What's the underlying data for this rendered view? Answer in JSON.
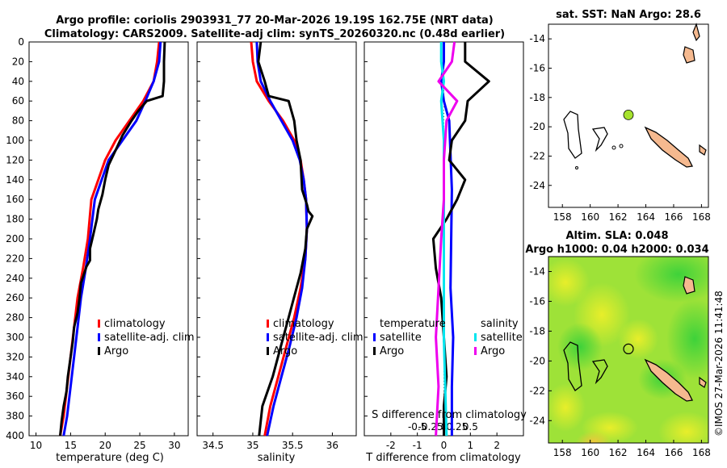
{
  "header": {
    "title_line1": "Argo profile: coriolis 2903931_77 20-Mar-2026 19.19S 162.75E (NRT data)",
    "title_line2": "Climatology: CARS2009. Satellite-adj clim: synTS_20260320.nc (0.48d earlier)"
  },
  "sst_title": "sat. SST: NaN Argo: 28.6",
  "sla_title_line1": "Altim. SLA: 0.048",
  "sla_title_line2": "Argo h1000: 0.04 h2000: 0.034",
  "watermark": "©IMOS 27-Mar-2026 11:41:48",
  "colors": {
    "climatology": "#ff0000",
    "satellite": "#0000ff",
    "argo": "#000000",
    "t_sat": "#00e5ee",
    "s_diff": "#ee00ee",
    "land": "#f5b98f",
    "float": "#a6e22e"
  },
  "chart_data": [
    {
      "type": "line",
      "id": "temperature",
      "xlabel": "temperature (deg C)",
      "xlim": [
        9,
        32
      ],
      "ylim": [
        400,
        0
      ],
      "xticks": [
        10,
        15,
        20,
        25,
        30
      ],
      "yticks": [
        0,
        20,
        40,
        60,
        80,
        100,
        120,
        140,
        160,
        180,
        200,
        220,
        240,
        260,
        280,
        300,
        320,
        340,
        360,
        380,
        400
      ],
      "legend": [
        "climatology",
        "satellite-adj. clim",
        "Argo"
      ],
      "series": [
        {
          "name": "climatology",
          "color": "#ff0000",
          "x": [
            27.8,
            27.5,
            27.0,
            25.5,
            23.5,
            21.5,
            20.0,
            19.0,
            18.0,
            17.5,
            16.8,
            16.0,
            15.5,
            15.0,
            14.5,
            14.0,
            13.5
          ],
          "y": [
            0,
            20,
            40,
            60,
            80,
            100,
            120,
            140,
            160,
            200,
            230,
            260,
            290,
            320,
            350,
            380,
            400
          ]
        },
        {
          "name": "satellite-adj. clim",
          "color": "#0000ff",
          "x": [
            28.0,
            27.8,
            27.0,
            25.8,
            24.5,
            22.5,
            20.5,
            19.5,
            18.5,
            17.8,
            17.2,
            16.5,
            16.0,
            15.5,
            15.0,
            14.5,
            14.0
          ],
          "y": [
            0,
            20,
            40,
            60,
            80,
            100,
            120,
            140,
            160,
            200,
            230,
            260,
            290,
            320,
            350,
            380,
            400
          ]
        },
        {
          "name": "Argo",
          "color": "#000000",
          "x": [
            28.6,
            28.5,
            28.5,
            28.3,
            26.0,
            24.8,
            23.8,
            22.5,
            21.5,
            20.5,
            20.0,
            19.6,
            19.0,
            18.8,
            18.3,
            17.8,
            17.8,
            17.3,
            16.5,
            16.3,
            16.0,
            15.5,
            15.3,
            15.0,
            14.6,
            14.4,
            14.0,
            13.7,
            13.5
          ],
          "y": [
            0,
            20,
            40,
            55,
            60,
            70,
            80,
            95,
            110,
            125,
            140,
            155,
            170,
            180,
            195,
            210,
            222,
            228,
            245,
            260,
            275,
            290,
            305,
            320,
            340,
            355,
            370,
            385,
            400
          ]
        }
      ]
    },
    {
      "type": "line",
      "id": "salinity",
      "xlabel": "salinity",
      "xlim": [
        34.3,
        36.3
      ],
      "ylim": [
        400,
        0
      ],
      "xticks": [
        34.5,
        35,
        35.5,
        36
      ],
      "legend": [
        "climatology",
        "satellite-adj. clim",
        "Argo"
      ],
      "series": [
        {
          "name": "climatology",
          "color": "#ff0000",
          "x": [
            34.98,
            35.0,
            35.05,
            35.2,
            35.38,
            35.52,
            35.6,
            35.64,
            35.67,
            35.68,
            35.66,
            35.6,
            35.52,
            35.42,
            35.32,
            35.22,
            35.15
          ],
          "y": [
            0,
            20,
            40,
            60,
            80,
            100,
            120,
            140,
            160,
            190,
            220,
            250,
            280,
            310,
            340,
            370,
            400
          ]
        },
        {
          "name": "satellite-adj. clim",
          "color": "#0000ff",
          "x": [
            35.05,
            35.06,
            35.1,
            35.22,
            35.36,
            35.5,
            35.59,
            35.64,
            35.67,
            35.68,
            35.66,
            35.62,
            35.55,
            35.46,
            35.36,
            35.26,
            35.18
          ],
          "y": [
            0,
            20,
            40,
            60,
            80,
            100,
            120,
            140,
            160,
            190,
            220,
            250,
            280,
            310,
            340,
            370,
            400
          ]
        },
        {
          "name": "Argo",
          "color": "#000000",
          "x": [
            35.1,
            35.07,
            35.15,
            35.2,
            35.45,
            35.52,
            35.55,
            35.6,
            35.62,
            35.68,
            35.7,
            35.75,
            35.68,
            35.66,
            35.6,
            35.55,
            35.45,
            35.35,
            35.25,
            35.12,
            35.08
          ],
          "y": [
            0,
            20,
            40,
            55,
            60,
            80,
            100,
            120,
            150,
            165,
            172,
            177,
            190,
            210,
            235,
            250,
            280,
            310,
            340,
            370,
            400
          ]
        }
      ]
    },
    {
      "type": "line",
      "id": "difference",
      "xlabel": "T difference from climatology",
      "top_label": "S difference from climatology",
      "xlim": [
        -3,
        3
      ],
      "ylim": [
        400,
        0
      ],
      "xticks": [
        -2,
        -1,
        0,
        1,
        2
      ],
      "s_ticks": [
        "-0.5",
        "-0.25",
        "0",
        "0.25",
        "0.5"
      ],
      "s_tick_values": [
        -1,
        -0.5,
        0,
        0.5,
        1
      ],
      "legend_temperature_header": "temperature",
      "legend_salinity_header": "salinity",
      "legend_temperature": [
        "satellite",
        "Argo"
      ],
      "legend_salinity": [
        "satellite",
        "Argo"
      ],
      "series": [
        {
          "name": "T satellite",
          "color": "#0000ff",
          "x": [
            0.0,
            0.0,
            -0.1,
            0.0,
            0.2,
            0.3,
            0.25,
            0.35,
            0.3,
            0.3
          ],
          "y": [
            0,
            20,
            40,
            60,
            80,
            150,
            250,
            300,
            350,
            400
          ]
        },
        {
          "name": "T Argo",
          "color": "#000000",
          "x": [
            0.8,
            0.8,
            1.7,
            0.9,
            0.8,
            0.3,
            0.2,
            0.8,
            0.5,
            0.1,
            -0.4,
            -0.3,
            -0.1,
            0.0,
            0.1,
            0.0,
            0.0
          ],
          "y": [
            0,
            20,
            40,
            60,
            80,
            100,
            120,
            140,
            160,
            180,
            200,
            230,
            260,
            300,
            340,
            370,
            400
          ]
        },
        {
          "name": "S satellite",
          "color": "#00e5ee",
          "x": [
            -0.1,
            -0.1,
            0.0,
            -0.1,
            0.0,
            0.0,
            0.0,
            0.0,
            0.05,
            0.1
          ],
          "y": [
            0,
            20,
            40,
            60,
            100,
            150,
            250,
            300,
            350,
            400
          ]
        },
        {
          "name": "S Argo",
          "color": "#ee00ee",
          "x": [
            0.4,
            0.3,
            -0.2,
            0.5,
            0.1,
            0.0,
            0.0,
            -0.1,
            -0.2,
            -0.3,
            -0.2,
            -0.3
          ],
          "y": [
            0,
            20,
            40,
            60,
            80,
            120,
            160,
            200,
            250,
            300,
            350,
            400
          ]
        }
      ]
    },
    {
      "type": "map",
      "id": "sst_map",
      "xlim": [
        157,
        168.5
      ],
      "ylim": [
        -25.5,
        -13
      ],
      "xticks": [
        158,
        160,
        162,
        164,
        166,
        168
      ],
      "yticks": [
        -14,
        -16,
        -18,
        -20,
        -22,
        -24
      ],
      "float_position": [
        162.75,
        -19.19
      ]
    },
    {
      "type": "map",
      "id": "sla_map",
      "xlim": [
        157,
        168.5
      ],
      "ylim": [
        -25.5,
        -13
      ],
      "xticks": [
        158,
        160,
        162,
        164,
        166,
        168
      ],
      "yticks": [
        -14,
        -16,
        -18,
        -20,
        -22,
        -24
      ],
      "float_position": [
        162.75,
        -19.19
      ]
    }
  ]
}
